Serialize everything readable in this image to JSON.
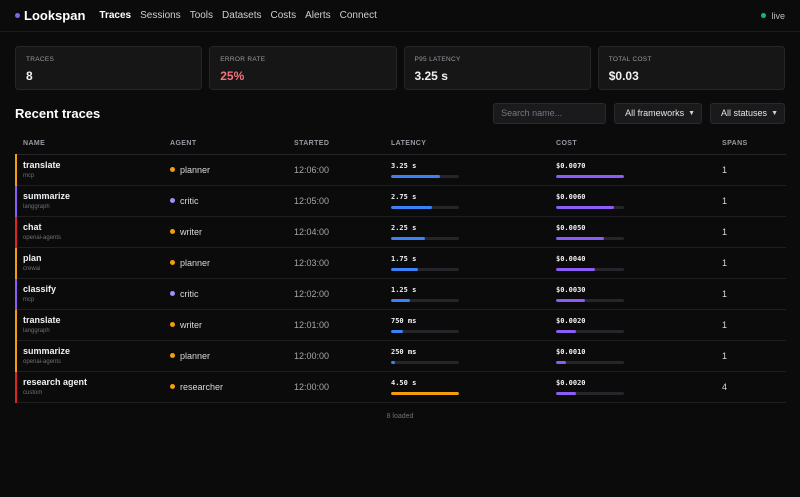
{
  "header": {
    "logo": "Lookspan",
    "nav": [
      "Traces",
      "Sessions",
      "Tools",
      "Datasets",
      "Costs",
      "Alerts",
      "Connect"
    ],
    "active_nav": "Traces",
    "status": "live"
  },
  "colors": {
    "brand": "#8b5cf6",
    "live": "#10b981",
    "latency_bar": "#3b82f6",
    "cost_bar": "#8b5cf6",
    "slow_bar": "#f59e0b",
    "error": "#f8717b",
    "agent_orange": "#f59e0b",
    "agent_purple": "#a78bfa"
  },
  "stats": [
    {
      "label": "TRACES",
      "value": "8"
    },
    {
      "label": "ERROR RATE",
      "value": "25%"
    },
    {
      "label": "P95 LATENCY",
      "value": "3.25 s"
    },
    {
      "label": "TOTAL COST",
      "value": "$0.03"
    }
  ],
  "recent": {
    "title": "Recent traces",
    "search_placeholder": "Search name...",
    "framework_filter": "All frameworks",
    "status_filter": "All statuses"
  },
  "table": {
    "columns": [
      "NAME",
      "AGENT",
      "STARTED",
      "LATENCY",
      "COST",
      "SPANS"
    ],
    "rows": [
      {
        "name": "translate",
        "framework": "mcp",
        "agent": "planner",
        "agent_color": "#f59e0b",
        "accent": "#f59e0b",
        "started": "12:06:00",
        "latency": "3.25 s",
        "latency_frac": 0.72,
        "latency_color": "#3b82f6",
        "cost": "$0.0070",
        "cost_frac": 1.0,
        "spans": "1"
      },
      {
        "name": "summarize",
        "framework": "langgraph",
        "agent": "critic",
        "agent_color": "#a78bfa",
        "accent": "#8b5cf6",
        "started": "12:05:00",
        "latency": "2.75 s",
        "latency_frac": 0.61,
        "latency_color": "#3b82f6",
        "cost": "$0.0060",
        "cost_frac": 0.86,
        "spans": "1"
      },
      {
        "name": "chat",
        "framework": "openai-agents",
        "agent": "writer",
        "agent_color": "#f59e0b",
        "accent": "#dc2626",
        "started": "12:04:00",
        "latency": "2.25 s",
        "latency_frac": 0.5,
        "latency_color": "#3b82f6",
        "cost": "$0.0050",
        "cost_frac": 0.71,
        "spans": "1"
      },
      {
        "name": "plan",
        "framework": "crewai",
        "agent": "planner",
        "agent_color": "#f59e0b",
        "accent": "#f59e0b",
        "started": "12:03:00",
        "latency": "1.75 s",
        "latency_frac": 0.39,
        "latency_color": "#3b82f6",
        "cost": "$0.0040",
        "cost_frac": 0.57,
        "spans": "1"
      },
      {
        "name": "classify",
        "framework": "mcp",
        "agent": "critic",
        "agent_color": "#a78bfa",
        "accent": "#8b5cf6",
        "started": "12:02:00",
        "latency": "1.25 s",
        "latency_frac": 0.28,
        "latency_color": "#3b82f6",
        "cost": "$0.0030",
        "cost_frac": 0.43,
        "spans": "1"
      },
      {
        "name": "translate",
        "framework": "langgraph",
        "agent": "writer",
        "agent_color": "#f59e0b",
        "accent": "#f59e0b",
        "started": "12:01:00",
        "latency": "750 ms",
        "latency_frac": 0.17,
        "latency_color": "#3b82f6",
        "cost": "$0.0020",
        "cost_frac": 0.29,
        "spans": "1"
      },
      {
        "name": "summarize",
        "framework": "openai-agents",
        "agent": "planner",
        "agent_color": "#f59e0b",
        "accent": "#f59e0b",
        "started": "12:00:00",
        "latency": "250 ms",
        "latency_frac": 0.06,
        "latency_color": "#3b82f6",
        "cost": "$0.0010",
        "cost_frac": 0.14,
        "spans": "1"
      },
      {
        "name": "research agent",
        "framework": "custom",
        "agent": "researcher",
        "agent_color": "#f59e0b",
        "accent": "#dc2626",
        "started": "12:00:00",
        "latency": "4.50 s",
        "latency_frac": 1.0,
        "latency_color": "#f59e0b",
        "cost": "$0.0020",
        "cost_frac": 0.29,
        "spans": "4"
      }
    ]
  },
  "footer": "8 loaded"
}
